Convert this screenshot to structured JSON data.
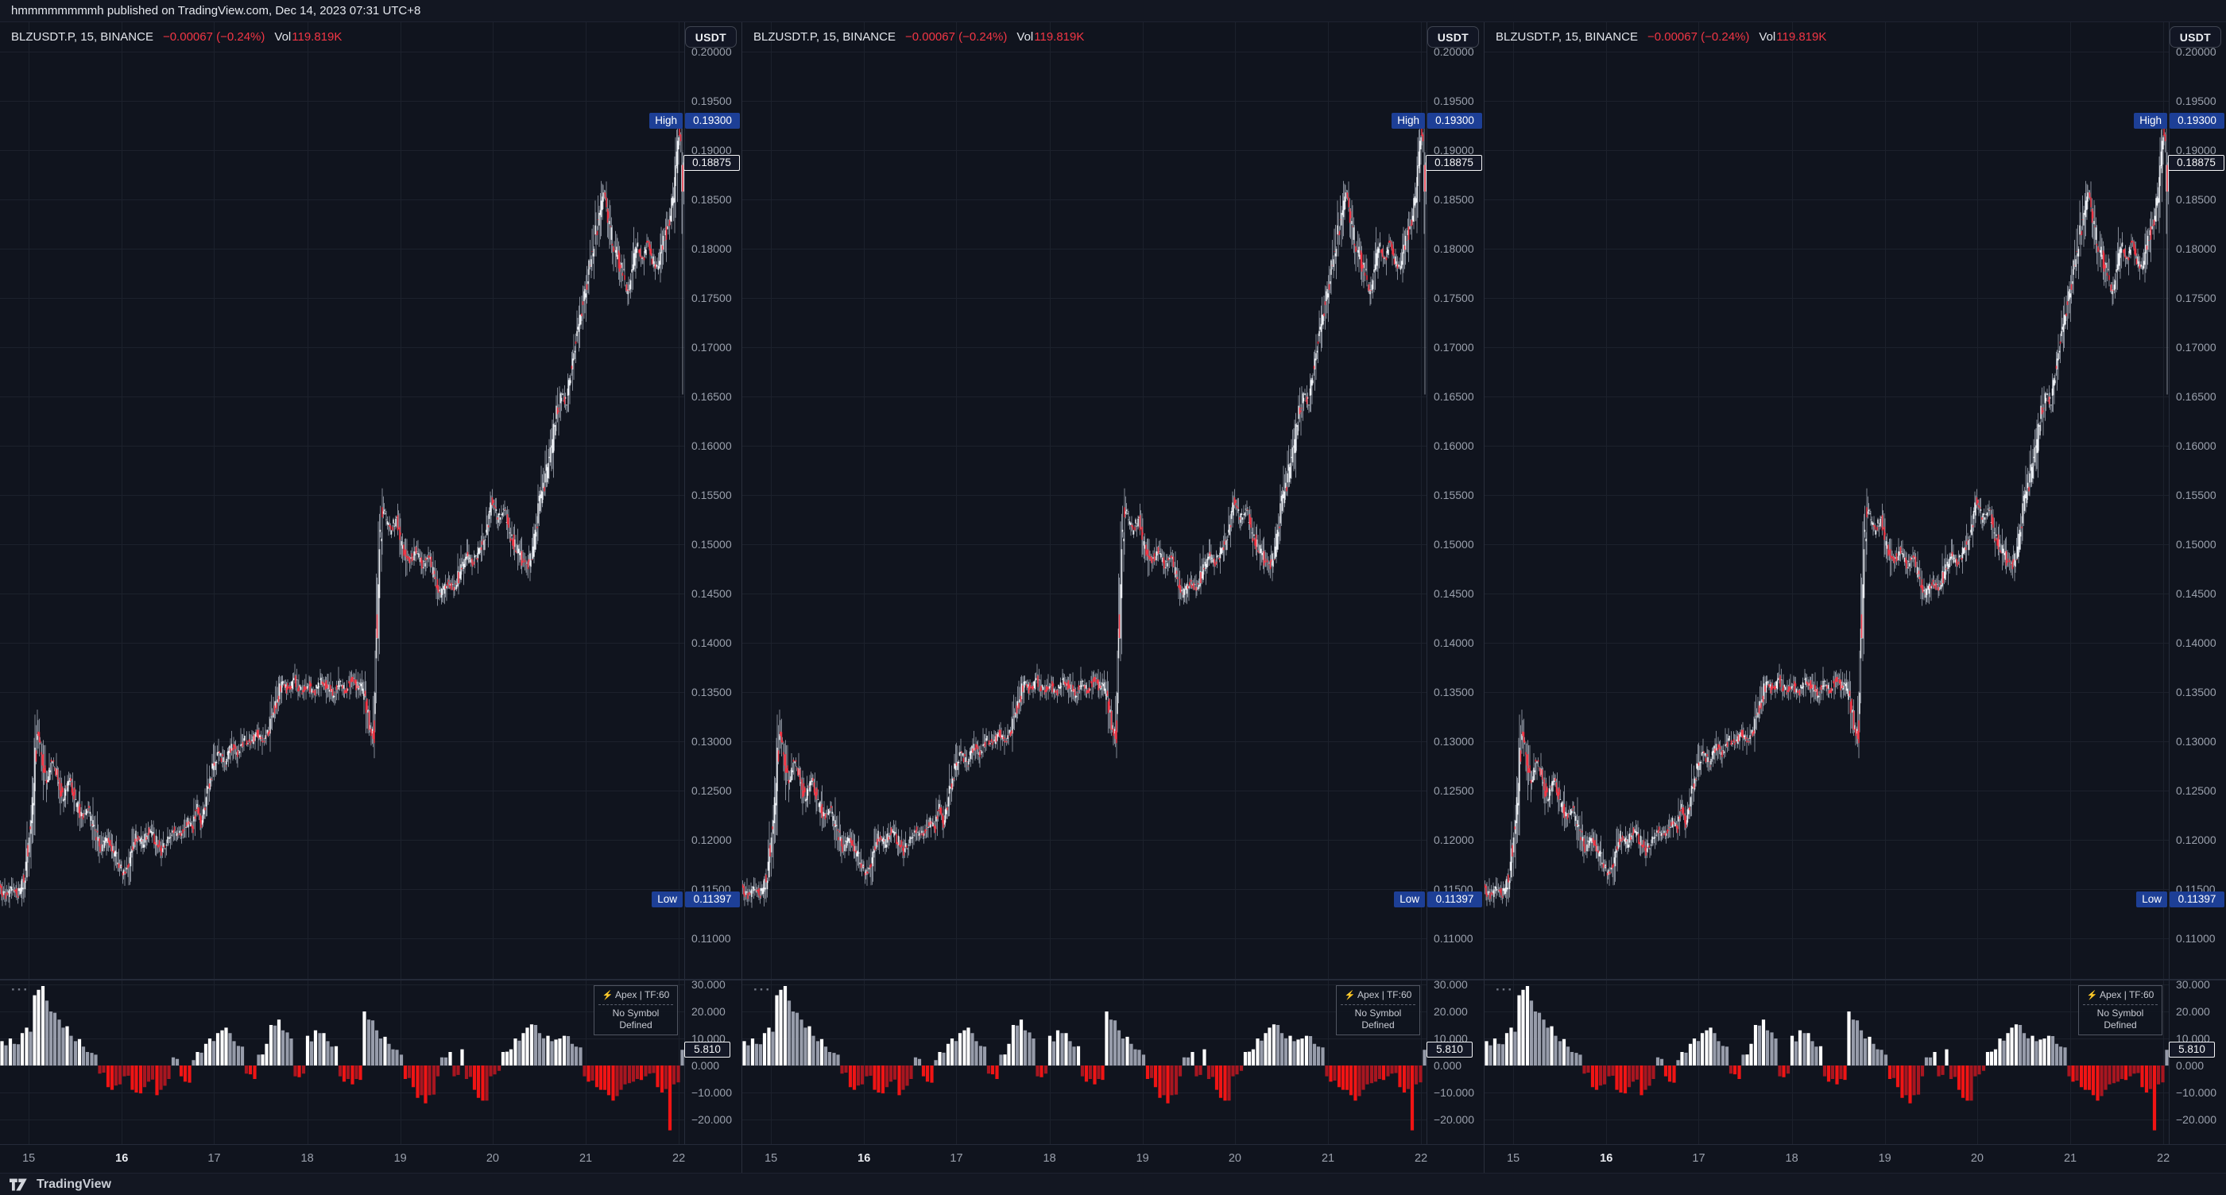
{
  "attribution": "hmmmmmmmmh published on TradingView.com, Dec 14, 2023 07:31 UTC+8",
  "footer": {
    "brand": "TradingView"
  },
  "panel": {
    "legend": {
      "symbol": "BLZUSDT.P, 15, BINANCE",
      "change": "−0.00067 (−0.24%)",
      "vol_label": "Vol",
      "vol_value": "119.819K"
    },
    "currency_button": "USDT",
    "price_axis": {
      "high_label": "High",
      "high_value": "0.19300",
      "low_label": "Low",
      "low_value": "0.11397",
      "last_value": "0.18875"
    },
    "indicator": {
      "more": "···",
      "bolt": "⚡",
      "line1": "Apex | TF:60",
      "line2": "No Symbol Defined",
      "last_value": "5.810"
    }
  },
  "colors": {
    "background": "#10141e",
    "candle_up": "#eceff4",
    "candle_down": "#f23645",
    "wick": "#8f95a1",
    "hist_pos_bright": "#ffffff",
    "hist_pos_muted": "#979caa",
    "hist_neg_bright": "#f01414",
    "hist_neg_muted": "#a81620",
    "badge_blue": "#1d3f96",
    "axis_text": "#9aa0ac",
    "grid": "rgba(200,210,235,0.07)"
  },
  "chart_data": {
    "type": "candlestick+histogram",
    "symbol": "BLZUSDT.P",
    "exchange": "BINANCE",
    "interval_minutes": 15,
    "stats": {
      "high": 0.193,
      "low": 0.11397,
      "last": 0.18875,
      "change": -0.00067,
      "change_pct": -0.24,
      "volume": "119.819K",
      "indicator_last": 5.81
    },
    "price_axis_ticks": [
      "0.20000",
      "0.19500",
      "0.19000",
      "0.18500",
      "0.18000",
      "0.17500",
      "0.17000",
      "0.16500",
      "0.16000",
      "0.15500",
      "0.15000",
      "0.14500",
      "0.14000",
      "0.13500",
      "0.13000",
      "0.12500",
      "0.12000",
      "0.11500",
      "0.11000"
    ],
    "price_range": {
      "top": 0.2026,
      "bottom": 0.1055
    },
    "time_axis": {
      "labels": [
        "15",
        "16",
        "17",
        "18",
        "19",
        "20",
        "21",
        "22"
      ],
      "bold_label": "16",
      "fracs": [
        0.042,
        0.178,
        0.313,
        0.449,
        0.585,
        0.72,
        0.856,
        0.992
      ]
    },
    "indicator": {
      "name": "Apex | TF:60",
      "timeframe_minutes": 60,
      "tick_values": [
        30,
        20,
        10,
        0,
        -10,
        -20
      ],
      "tick_labels": [
        "30.000",
        "20.000",
        "10.000",
        "0.000",
        "−10.000",
        "−20.000"
      ],
      "last": 5.81,
      "delta_bars": [
        9,
        10,
        8,
        12,
        14,
        26,
        28,
        24,
        20,
        17,
        14,
        11,
        9,
        7,
        5,
        4,
        -3,
        -8,
        -9,
        -7,
        -4,
        -9,
        -10,
        -8,
        -6,
        -11,
        -9,
        -5,
        3,
        -4,
        -6,
        2,
        5,
        8,
        10,
        12,
        13,
        12,
        9,
        7,
        -3,
        -5,
        4,
        8,
        15,
        17,
        13,
        10,
        -4,
        -3,
        11,
        13,
        12,
        9,
        7,
        -4,
        -6,
        -7,
        -5,
        20,
        17,
        13,
        10,
        8,
        6,
        4,
        -5,
        -8,
        -12,
        -14,
        -11,
        -4,
        3,
        5,
        -4,
        6,
        -5,
        -9,
        -12,
        -13,
        -4,
        -2,
        5,
        6,
        10,
        12,
        14,
        15,
        12,
        11,
        9,
        10,
        11,
        8,
        7,
        -4,
        -6,
        -8,
        -9,
        -11,
        -13,
        -9,
        -7,
        -6,
        -5,
        -4,
        -3,
        -8,
        -10,
        -24,
        -7,
        5.81
      ]
    },
    "candles": {
      "count": 672,
      "anchors": [
        [
          0,
          0.1152
        ],
        [
          0.0093,
          0.1142
        ],
        [
          0.0186,
          0.115
        ],
        [
          0.0278,
          0.1146
        ],
        [
          0.0371,
          0.1162
        ],
        [
          0.0464,
          0.1225
        ],
        [
          0.0557,
          0.1312
        ],
        [
          0.0626,
          0.1282
        ],
        [
          0.0696,
          0.1258
        ],
        [
          0.0766,
          0.1282
        ],
        [
          0.0835,
          0.1268
        ],
        [
          0.0928,
          0.1242
        ],
        [
          0.1021,
          0.1262
        ],
        [
          0.1114,
          0.1238
        ],
        [
          0.1206,
          0.1222
        ],
        [
          0.1299,
          0.1232
        ],
        [
          0.1392,
          0.1205
        ],
        [
          0.1485,
          0.1192
        ],
        [
          0.1578,
          0.1202
        ],
        [
          0.1671,
          0.1188
        ],
        [
          0.1763,
          0.1172
        ],
        [
          0.1833,
          0.1165
        ],
        [
          0.1902,
          0.118
        ],
        [
          0.1995,
          0.1205
        ],
        [
          0.2088,
          0.1196
        ],
        [
          0.2181,
          0.121
        ],
        [
          0.2274,
          0.12
        ],
        [
          0.2367,
          0.1188
        ],
        [
          0.2459,
          0.12
        ],
        [
          0.2552,
          0.121
        ],
        [
          0.2645,
          0.1205
        ],
        [
          0.2738,
          0.1218
        ],
        [
          0.2831,
          0.1212
        ],
        [
          0.2877,
          0.1238
        ],
        [
          0.2947,
          0.1215
        ],
        [
          0.3016,
          0.1242
        ],
        [
          0.3109,
          0.1272
        ],
        [
          0.3202,
          0.1288
        ],
        [
          0.3295,
          0.1278
        ],
        [
          0.3387,
          0.1295
        ],
        [
          0.348,
          0.1288
        ],
        [
          0.3573,
          0.1302
        ],
        [
          0.3666,
          0.1296
        ],
        [
          0.3759,
          0.1308
        ],
        [
          0.3852,
          0.13
        ],
        [
          0.3944,
          0.1312
        ],
        [
          0.4037,
          0.1338
        ],
        [
          0.413,
          0.136
        ],
        [
          0.4223,
          0.1352
        ],
        [
          0.4316,
          0.1362
        ],
        [
          0.4408,
          0.135
        ],
        [
          0.4501,
          0.1358
        ],
        [
          0.4594,
          0.1348
        ],
        [
          0.4687,
          0.1362
        ],
        [
          0.478,
          0.1355
        ],
        [
          0.4872,
          0.1348
        ],
        [
          0.4965,
          0.136
        ],
        [
          0.5058,
          0.1352
        ],
        [
          0.5151,
          0.1365
        ],
        [
          0.522,
          0.1355
        ],
        [
          0.5278,
          0.1358
        ],
        [
          0.5359,
          0.1338
        ],
        [
          0.5429,
          0.1305
        ],
        [
          0.5475,
          0.1315
        ],
        [
          0.5522,
          0.144
        ],
        [
          0.5568,
          0.152
        ],
        [
          0.5614,
          0.1535
        ],
        [
          0.5707,
          0.1512
        ],
        [
          0.58,
          0.1525
        ],
        [
          0.5893,
          0.1498
        ],
        [
          0.5986,
          0.1482
        ],
        [
          0.6079,
          0.1495
        ],
        [
          0.6171,
          0.1478
        ],
        [
          0.6264,
          0.1488
        ],
        [
          0.6357,
          0.1465
        ],
        [
          0.645,
          0.1448
        ],
        [
          0.6543,
          0.1462
        ],
        [
          0.6636,
          0.1452
        ],
        [
          0.6729,
          0.1472
        ],
        [
          0.6821,
          0.1488
        ],
        [
          0.6914,
          0.148
        ],
        [
          0.6995,
          0.1492
        ],
        [
          0.71,
          0.1505
        ],
        [
          0.7193,
          0.1545
        ],
        [
          0.7285,
          0.1525
        ],
        [
          0.7367,
          0.1535
        ],
        [
          0.7483,
          0.1505
        ],
        [
          0.7564,
          0.1495
        ],
        [
          0.7657,
          0.1482
        ],
        [
          0.7726,
          0.1478
        ],
        [
          0.7796,
          0.1495
        ],
        [
          0.7865,
          0.153
        ],
        [
          0.7935,
          0.1555
        ],
        [
          0.8005,
          0.1575
        ],
        [
          0.8074,
          0.16
        ],
        [
          0.8144,
          0.1638
        ],
        [
          0.8213,
          0.1652
        ],
        [
          0.8283,
          0.1645
        ],
        [
          0.8353,
          0.1675
        ],
        [
          0.8422,
          0.1705
        ],
        [
          0.8492,
          0.1735
        ],
        [
          0.8561,
          0.1755
        ],
        [
          0.8631,
          0.1785
        ],
        [
          0.8701,
          0.1812
        ],
        [
          0.877,
          0.1835
        ],
        [
          0.884,
          0.1858
        ],
        [
          0.8909,
          0.1822
        ],
        [
          0.8979,
          0.1802
        ],
        [
          0.9049,
          0.1788
        ],
        [
          0.9118,
          0.1772
        ],
        [
          0.9188,
          0.1752
        ],
        [
          0.9258,
          0.1782
        ],
        [
          0.9327,
          0.1802
        ],
        [
          0.9397,
          0.1788
        ],
        [
          0.9466,
          0.1808
        ],
        [
          0.9536,
          0.1792
        ],
        [
          0.9606,
          0.1778
        ],
        [
          0.9675,
          0.18
        ],
        [
          0.9745,
          0.1818
        ],
        [
          0.9815,
          0.1838
        ],
        [
          0.9884,
          0.1872
        ],
        [
          0.993,
          0.1922
        ],
        [
          1,
          0.1888
        ]
      ],
      "last_candles": [
        {
          "o": 0.1858,
          "h": 0.193,
          "l": 0.1815,
          "c": 0.1885
        },
        {
          "o": 0.1885,
          "h": 0.1898,
          "l": 0.1652,
          "c": 0.1858
        },
        {
          "o": 0.1858,
          "h": 0.189,
          "l": 0.1845,
          "c": 0.18875
        }
      ]
    }
  }
}
